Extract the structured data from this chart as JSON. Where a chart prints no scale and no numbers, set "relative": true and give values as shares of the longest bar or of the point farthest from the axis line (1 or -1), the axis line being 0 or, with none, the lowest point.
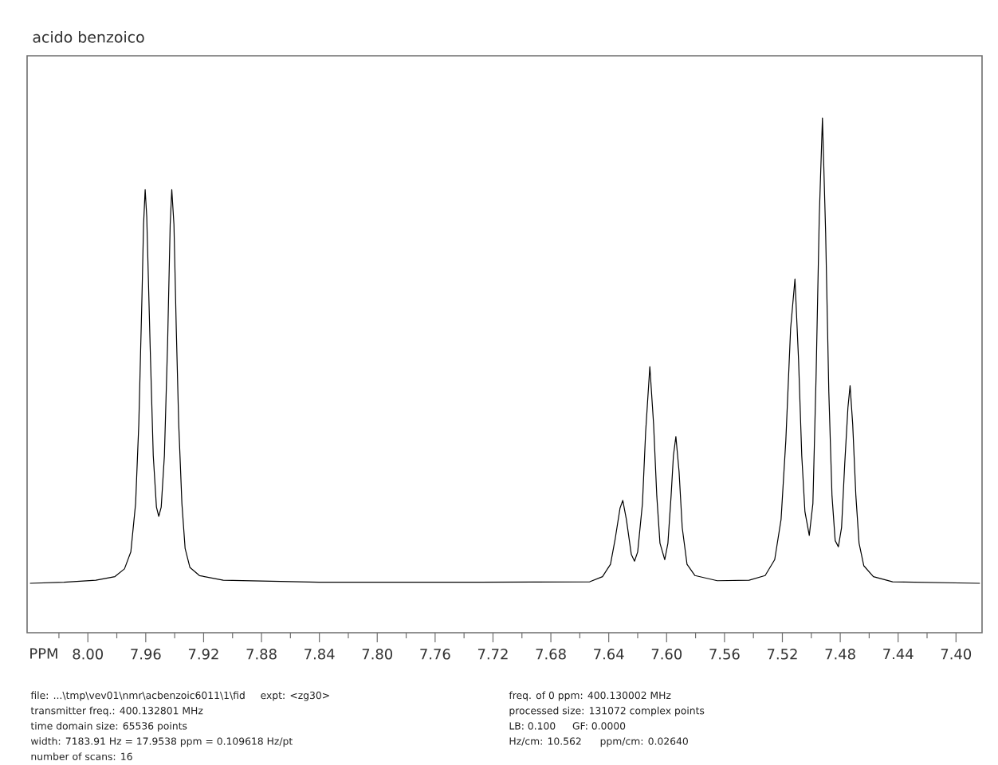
{
  "chart_data": {
    "type": "line",
    "title": "acido benzoico",
    "xlabel": "PPM",
    "relative": true,
    "marker": "none",
    "line_style": "solid",
    "color": "#000000",
    "xlim": [
      8.042,
      7.382
    ],
    "xticks": [
      {
        "value": 8.02,
        "label": null
      },
      {
        "value": 8.0,
        "label": "8.00"
      },
      {
        "value": 7.98,
        "label": null
      },
      7.96,
      {
        "value": 7.94,
        "label": null
      },
      7.92,
      {
        "value": 7.9,
        "label": null
      },
      7.88,
      {
        "value": 7.86,
        "label": null
      },
      7.84,
      {
        "value": 7.82,
        "label": null
      },
      {
        "value": 7.8,
        "label": "7.80"
      },
      {
        "value": 7.78,
        "label": null
      },
      7.76,
      {
        "value": 7.74,
        "label": null
      },
      7.72,
      {
        "value": 7.7,
        "label": null
      },
      7.68,
      {
        "value": 7.66,
        "label": null
      },
      7.64,
      {
        "value": 7.62,
        "label": null
      },
      {
        "value": 7.6,
        "label": "7.60"
      },
      {
        "value": 7.58,
        "label": null
      },
      7.56,
      {
        "value": 7.54,
        "label": null
      },
      7.52,
      {
        "value": 7.5,
        "label": null
      },
      7.48,
      {
        "value": 7.46,
        "label": null
      },
      7.44,
      {
        "value": 7.42,
        "label": null
      },
      {
        "value": 7.4,
        "label": "7.40"
      }
    ],
    "x": [
      8.04,
      8.0165,
      7.9945,
      7.9813,
      7.9747,
      7.9703,
      7.967,
      7.9648,
      7.9626,
      7.9615,
      7.9604,
      7.9593,
      7.957,
      7.9548,
      7.9526,
      7.951,
      7.9493,
      7.9471,
      7.9449,
      7.9431,
      7.942,
      7.9405,
      7.9389,
      7.9372,
      7.935,
      7.9328,
      7.9295,
      7.9229,
      7.9064,
      7.8403,
      7.7302,
      7.6531,
      7.6443,
      7.6388,
      7.6355,
      7.6322,
      7.6303,
      7.6278,
      7.6244,
      7.6222,
      7.62,
      7.6167,
      7.6145,
      7.6116,
      7.609,
      7.6068,
      7.6046,
      7.6013,
      7.5991,
      7.5969,
      7.5953,
      7.5936,
      7.5914,
      7.5892,
      7.5859,
      7.5804,
      7.565,
      7.543,
      7.5319,
      7.5253,
      7.5209,
      7.5176,
      7.5143,
      7.5113,
      7.5088,
      7.5066,
      7.5044,
      7.5014,
      7.4989,
      7.4967,
      7.4945,
      7.4923,
      7.4901,
      7.4879,
      7.4857,
      7.4835,
      7.4813,
      7.4791,
      7.4769,
      7.4747,
      7.4732,
      7.4714,
      7.4692,
      7.467,
      7.4637,
      7.4571,
      7.4438,
      7.3835
    ],
    "values": [
      0.096,
      0.098,
      0.102,
      0.109,
      0.124,
      0.157,
      0.251,
      0.405,
      0.653,
      0.793,
      0.861,
      0.808,
      0.561,
      0.344,
      0.244,
      0.226,
      0.244,
      0.344,
      0.561,
      0.793,
      0.861,
      0.793,
      0.591,
      0.405,
      0.251,
      0.164,
      0.127,
      0.111,
      0.102,
      0.098,
      0.098,
      0.099,
      0.109,
      0.133,
      0.183,
      0.242,
      0.257,
      0.22,
      0.152,
      0.139,
      0.157,
      0.251,
      0.39,
      0.517,
      0.405,
      0.266,
      0.174,
      0.142,
      0.174,
      0.266,
      0.344,
      0.381,
      0.313,
      0.204,
      0.133,
      0.111,
      0.101,
      0.102,
      0.111,
      0.142,
      0.22,
      0.374,
      0.591,
      0.687,
      0.529,
      0.344,
      0.235,
      0.189,
      0.251,
      0.498,
      0.808,
      1,
      0.777,
      0.468,
      0.266,
      0.179,
      0.167,
      0.204,
      0.328,
      0.437,
      0.48,
      0.405,
      0.266,
      0.174,
      0.13,
      0.109,
      0.099,
      0.096
    ],
    "annotations": [
      "file: ...\\tmp\\vev01\\nmr\\acbenzoic6011\\1\\fid",
      "expt: <zg30>",
      "transmitter freq.: 400.132801 MHz",
      "time domain size: 65536 points",
      "width: 7183.91 Hz = 17.9538 ppm = 0.109618 Hz/pt",
      "number of scans: 16",
      "freq. of 0 ppm: 400.130002 MHz",
      "processed size: 131072 complex points",
      "LB: 0.100",
      "GF: 0.0000",
      "Hz/cm: 10.562",
      "ppm/cm: 0.02640"
    ]
  }
}
